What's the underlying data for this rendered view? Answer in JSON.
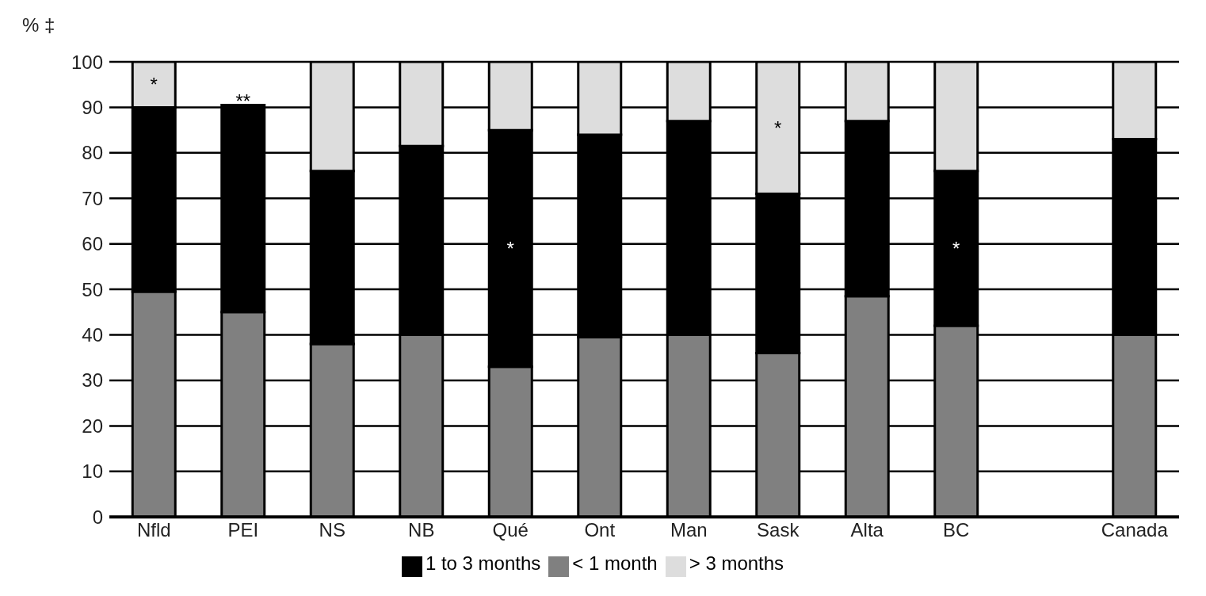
{
  "chart_data": {
    "type": "bar",
    "stacked": true,
    "ylabel": "% ‡",
    "categories": [
      "Nfld",
      "PEI",
      "NS",
      "NB",
      "Qué",
      "Ont",
      "Man",
      "Sask",
      "Alta",
      "BC",
      null,
      "Canada"
    ],
    "series": [
      {
        "name": "< 1 month",
        "color": "#808080",
        "values": [
          49.5,
          45,
          38,
          40,
          33,
          39.5,
          40,
          36,
          48.5,
          42,
          null,
          40
        ]
      },
      {
        "name": "1 to 3 months",
        "color": "#000000",
        "values": [
          40.5,
          45.5,
          38,
          41.5,
          52,
          44.5,
          47,
          35,
          38.5,
          34,
          null,
          43
        ],
        "value_labels": [
          null,
          null,
          null,
          null,
          "*",
          null,
          null,
          null,
          null,
          "*",
          null,
          null
        ]
      },
      {
        "name": "> 3 months",
        "color": "#dddddd",
        "values": [
          10,
          null,
          24,
          18.5,
          15,
          16,
          13,
          29,
          13,
          24,
          null,
          17
        ],
        "value_labels": [
          "*",
          "**",
          null,
          null,
          null,
          null,
          null,
          "*",
          null,
          null,
          null,
          null
        ]
      }
    ],
    "ylim": [
      0,
      100
    ],
    "yticks": [
      0,
      10,
      20,
      30,
      40,
      50,
      60,
      70,
      80,
      90,
      100
    ],
    "grid": "y",
    "legend": "bottom"
  }
}
